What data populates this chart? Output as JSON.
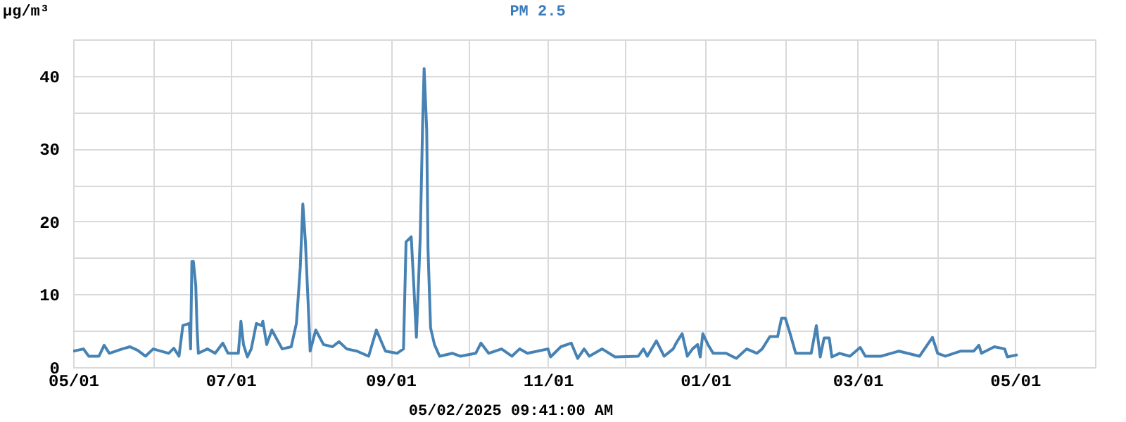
{
  "chart_data": {
    "type": "line",
    "title": "PM 2.5",
    "ylabel": "µg/m³",
    "annotations": [
      "05/02/2025 09:41:00 AM"
    ],
    "x": [
      "2024-05-01",
      "2024-05-05",
      "2024-05-07",
      "2024-05-11",
      "2024-05-13",
      "2024-05-15",
      "2024-05-20",
      "2024-05-23",
      "2024-05-26",
      "2024-05-29",
      "2024-06-01",
      "2024-06-07",
      "2024-06-09",
      "2024-06-11",
      "2024-06-12T12:00",
      "2024-06-15",
      "2024-06-15T12:00",
      "2024-06-16",
      "2024-06-16T14:00",
      "2024-06-17T12:00",
      "2024-06-18",
      "2024-06-18T12:00",
      "2024-06-22",
      "2024-06-25",
      "2024-06-28",
      "2024-06-30",
      "2024-07-04",
      "2024-07-05",
      "2024-07-06",
      "2024-07-07T12:00",
      "2024-07-09",
      "2024-07-11",
      "2024-07-13",
      "2024-07-13T12:00",
      "2024-07-15",
      "2024-07-17",
      "2024-07-21",
      "2024-07-24T12:00",
      "2024-07-26T12:00",
      "2024-07-28",
      "2024-07-29",
      "2024-07-30",
      "2024-07-31",
      "2024-07-31T20:00",
      "2024-08-03",
      "2024-08-06",
      "2024-08-09T12:00",
      "2024-08-12",
      "2024-08-15",
      "2024-08-19",
      "2024-08-23T12:00",
      "2024-08-26T12:00",
      "2024-08-30",
      "2024-09-03T12:00",
      "2024-09-06",
      "2024-09-07",
      "2024-09-09",
      "2024-09-10",
      "2024-09-11",
      "2024-09-12T12:00",
      "2024-09-13T10:00",
      "2024-09-14",
      "2024-09-15",
      "2024-09-15T12:00",
      "2024-09-16T12:00",
      "2024-09-18",
      "2024-09-20",
      "2024-09-25",
      "2024-09-28",
      "2024-10-04",
      "2024-10-06",
      "2024-10-09",
      "2024-10-14",
      "2024-10-18",
      "2024-10-21",
      "2024-10-24",
      "2024-11-01",
      "2024-11-02",
      "2024-11-06",
      "2024-11-10",
      "2024-11-12T12:00",
      "2024-11-15",
      "2024-11-17",
      "2024-11-22",
      "2024-11-27",
      "2024-12-06",
      "2024-12-08",
      "2024-12-09T12:00",
      "2024-12-13",
      "2024-12-16",
      "2024-12-19T12:00",
      "2024-12-21",
      "2024-12-23",
      "2024-12-25",
      "2024-12-27",
      "2024-12-29",
      "2024-12-30",
      "2024-12-31",
      "2025-01-02",
      "2025-01-04",
      "2025-01-09",
      "2025-01-13",
      "2025-01-17",
      "2025-01-21",
      "2025-01-23",
      "2025-01-26",
      "2025-01-29",
      "2025-01-30T12:00",
      "2025-02-01",
      "2025-02-03",
      "2025-02-05",
      "2025-02-11",
      "2025-02-13",
      "2025-02-14T12:00",
      "2025-02-16",
      "2025-02-18",
      "2025-02-19",
      "2025-02-22",
      "2025-02-26",
      "2025-03-02",
      "2025-03-04",
      "2025-03-10",
      "2025-03-17",
      "2025-03-25",
      "2025-03-30",
      "2025-04-01",
      "2025-04-04",
      "2025-04-10",
      "2025-04-15",
      "2025-04-17",
      "2025-04-18",
      "2025-04-23",
      "2025-04-27",
      "2025-04-28",
      "2025-05-02"
    ],
    "series": [
      {
        "color": "#4682b4",
        "values": [
          2.2,
          2.5,
          1.5,
          1.5,
          3.0,
          1.9,
          2.5,
          2.8,
          2.3,
          1.5,
          2.5,
          1.9,
          2.6,
          1.5,
          5.7,
          6.0,
          2.5,
          14.5,
          14.5,
          11.2,
          5.4,
          1.9,
          2.5,
          1.9,
          3.3,
          1.9,
          1.9,
          6.3,
          3.1,
          1.4,
          2.5,
          6.0,
          5.7,
          6.3,
          3.1,
          5.1,
          2.5,
          2.8,
          6.0,
          13.7,
          22.4,
          17.2,
          9.2,
          2.2,
          5.1,
          3.1,
          2.8,
          3.5,
          2.5,
          2.2,
          1.5,
          5.1,
          2.2,
          1.9,
          2.5,
          17.2,
          17.9,
          11.2,
          4.1,
          17.9,
          33.3,
          41.0,
          32.6,
          16.3,
          5.4,
          3.1,
          1.5,
          1.9,
          1.5,
          1.9,
          3.3,
          1.9,
          2.5,
          1.5,
          2.5,
          1.9,
          2.5,
          1.4,
          2.8,
          3.3,
          1.2,
          2.5,
          1.5,
          2.5,
          1.4,
          1.5,
          2.5,
          1.5,
          3.6,
          1.5,
          2.5,
          3.5,
          4.6,
          1.5,
          2.5,
          3.1,
          1.4,
          4.6,
          3.1,
          1.9,
          1.9,
          1.2,
          2.5,
          1.9,
          2.5,
          4.2,
          4.2,
          6.7,
          6.7,
          4.4,
          1.9,
          1.9,
          5.7,
          1.4,
          4.0,
          4.0,
          1.4,
          1.9,
          1.5,
          2.7,
          1.5,
          1.5,
          2.2,
          1.5,
          4.1,
          1.9,
          1.5,
          2.2,
          2.2,
          3.0,
          1.9,
          2.8,
          2.5,
          1.4,
          1.7
        ]
      }
    ],
    "xlim": [
      "2024-05-01",
      "2025-06-01"
    ],
    "xticks": [
      {
        "value": "2024-05-01",
        "label": "05/01"
      },
      {
        "value": "2024-06-01",
        "label": null
      },
      {
        "value": "2024-07-01",
        "label": "07/01"
      },
      {
        "value": "2024-08-01",
        "label": null
      },
      {
        "value": "2024-09-01",
        "label": "09/01"
      },
      {
        "value": "2024-10-01",
        "label": null
      },
      {
        "value": "2024-11-01",
        "label": "11/01"
      },
      {
        "value": "2024-12-01",
        "label": null
      },
      {
        "value": "2025-01-01",
        "label": "01/01"
      },
      {
        "value": "2025-02-01",
        "label": null
      },
      {
        "value": "2025-03-01",
        "label": "03/01"
      },
      {
        "value": "2025-04-01",
        "label": null
      },
      {
        "value": "2025-05-01",
        "label": "05/01"
      },
      {
        "value": "2025-06-01",
        "label": null
      }
    ],
    "ylim": [
      0,
      45
    ],
    "yticks": [
      0,
      {
        "value": 5,
        "label": null
      },
      10,
      {
        "value": 15,
        "label": null
      },
      20,
      {
        "value": 25,
        "label": null
      },
      30,
      {
        "value": 35,
        "label": null
      },
      40,
      {
        "value": 45,
        "label": null
      }
    ],
    "grid": true,
    "marker": "none",
    "line_style": "solid"
  }
}
